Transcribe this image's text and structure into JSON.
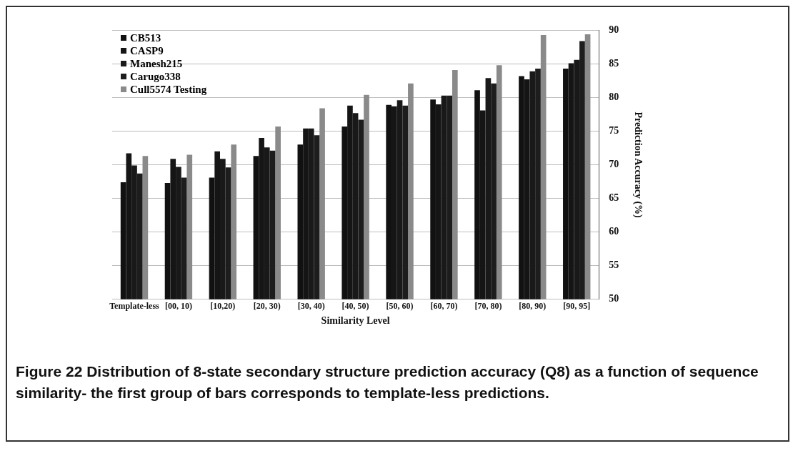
{
  "chart_data": {
    "type": "bar",
    "xlabel": "Similarity Level",
    "ylabel": "Prediction Accuracy (%)",
    "categories": [
      "Template-less",
      "[00, 10)",
      "[10,20)",
      "[20, 30)",
      "[30, 40)",
      "[40, 50)",
      "[50, 60)",
      "[60, 70)",
      "[70, 80)",
      "[80, 90)",
      "[90, 95]"
    ],
    "series": [
      {
        "name": "CB513",
        "color": "#111111",
        "values": [
          67.4,
          67.3,
          68.1,
          71.3,
          73.0,
          75.7,
          78.9,
          79.7,
          81.1,
          83.2,
          84.3
        ]
      },
      {
        "name": "CASP9",
        "color": "#151515",
        "values": [
          71.7,
          70.9,
          72.0,
          74.0,
          75.4,
          78.8,
          78.7,
          79.0,
          78.1,
          82.7,
          85.1
        ]
      },
      {
        "name": "Manesh215",
        "color": "#191919",
        "values": [
          69.9,
          69.7,
          70.9,
          72.6,
          75.4,
          77.7,
          79.6,
          80.3,
          82.9,
          83.9,
          85.6
        ]
      },
      {
        "name": "Carugo338",
        "color": "#1d1d1d",
        "values": [
          68.7,
          68.1,
          69.6,
          72.1,
          74.4,
          76.7,
          78.8,
          80.3,
          82.1,
          84.3,
          88.4
        ]
      },
      {
        "name": "Cull5574 Testing",
        "color": "#8a8a8a",
        "values": [
          71.3,
          71.5,
          73.0,
          75.7,
          78.4,
          80.4,
          82.1,
          84.1,
          84.8,
          89.3,
          89.4
        ]
      }
    ],
    "ylim": [
      50,
      90
    ],
    "yticks": [
      50,
      55,
      60,
      65,
      70,
      75,
      80,
      85,
      90
    ],
    "grid": "y",
    "legend": "top left",
    "annotations": [
      "Figure 22 Distribution of 8-state secondary structure prediction accuracy (Q8) as a function of sequence similarity- the first group of bars corresponds to template-less predictions."
    ]
  }
}
